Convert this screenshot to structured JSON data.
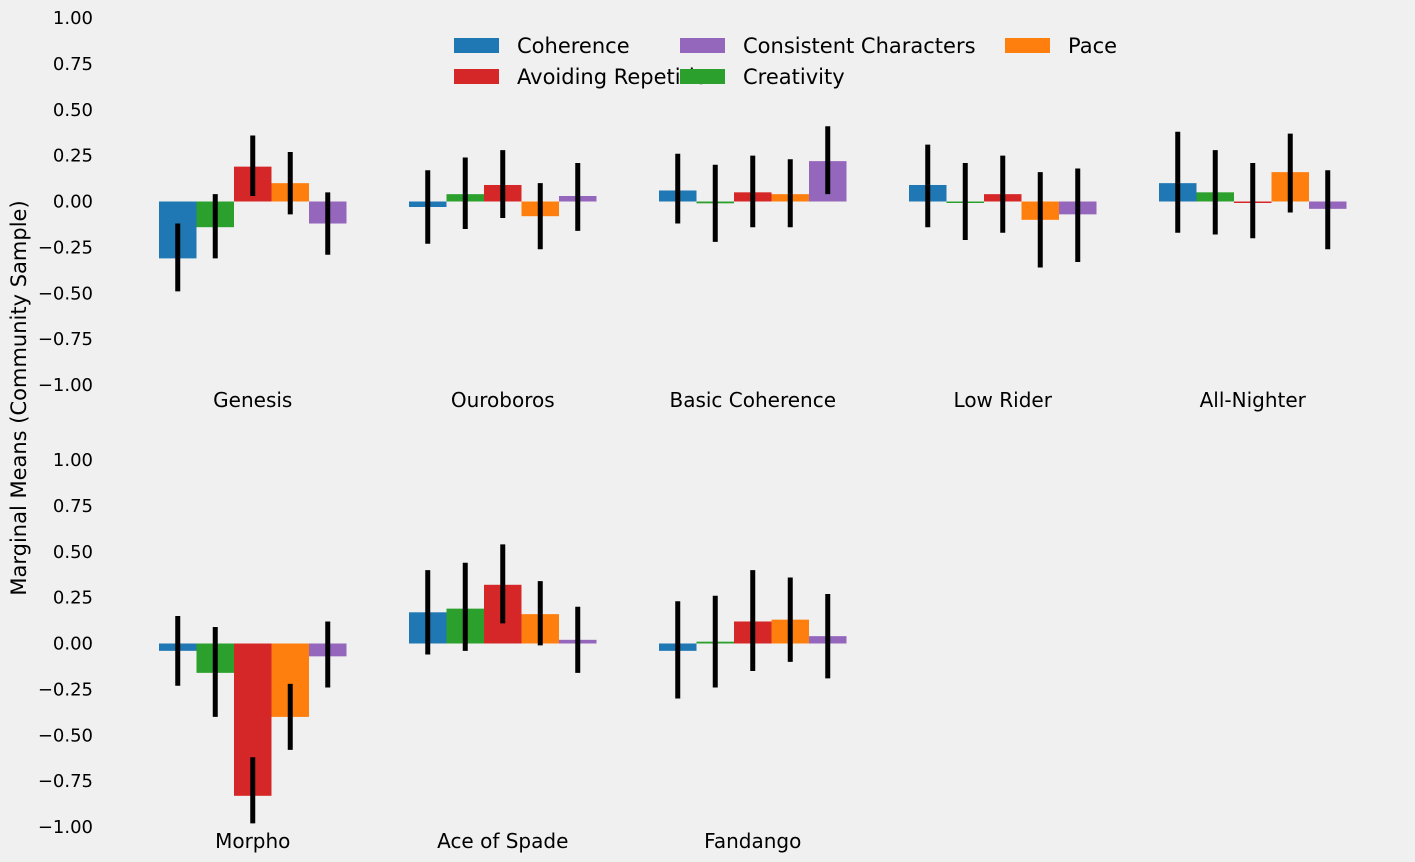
{
  "chart_data": {
    "type": "bar",
    "ylabel": "Marginal Means (Community Sample)",
    "ylim": [
      -1,
      1
    ],
    "yticks": [
      "1.00",
      "0.75",
      "0.50",
      "0.25",
      "0.00",
      "−0.25",
      "−0.50",
      "−0.75",
      "−1.00"
    ],
    "grid": false,
    "legend_position": "top",
    "series": [
      {
        "name": "Coherence",
        "color": "#1f77b4"
      },
      {
        "name": "Creativity",
        "color": "#2ca02c"
      },
      {
        "name": "Avoiding Repetition",
        "color": "#d62728"
      },
      {
        "name": "Pace",
        "color": "#ff7f0e"
      },
      {
        "name": "Consistent Characters",
        "color": "#9467bd"
      }
    ],
    "legend_order": [
      0,
      2,
      4,
      1,
      3
    ],
    "panels": [
      {
        "categories": [
          "Genesis",
          "Ouroboros",
          "Basic Coherence",
          "Low Rider",
          "All-Nighter"
        ],
        "values": [
          [
            -0.31,
            -0.14,
            0.19,
            0.1,
            -0.12
          ],
          [
            -0.03,
            0.04,
            0.09,
            -0.08,
            0.03
          ],
          [
            0.06,
            -0.01,
            0.05,
            0.04,
            0.22
          ],
          [
            0.09,
            0.0,
            0.04,
            -0.1,
            -0.07
          ],
          [
            0.1,
            0.05,
            0.0,
            0.16,
            -0.04
          ]
        ],
        "errors": [
          [
            [
              -0.49,
              -0.12
            ],
            [
              -0.31,
              0.04
            ],
            [
              0.03,
              0.36
            ],
            [
              -0.07,
              0.27
            ],
            [
              -0.29,
              0.05
            ]
          ],
          [
            [
              -0.23,
              0.17
            ],
            [
              -0.15,
              0.24
            ],
            [
              -0.09,
              0.28
            ],
            [
              -0.26,
              0.1
            ],
            [
              -0.16,
              0.21
            ]
          ],
          [
            [
              -0.12,
              0.26
            ],
            [
              -0.22,
              0.2
            ],
            [
              -0.14,
              0.25
            ],
            [
              -0.14,
              0.23
            ],
            [
              0.04,
              0.41
            ]
          ],
          [
            [
              -0.14,
              0.31
            ],
            [
              -0.21,
              0.21
            ],
            [
              -0.17,
              0.25
            ],
            [
              -0.36,
              0.16
            ],
            [
              -0.33,
              0.18
            ]
          ],
          [
            [
              -0.17,
              0.38
            ],
            [
              -0.18,
              0.28
            ],
            [
              -0.2,
              0.21
            ],
            [
              -0.06,
              0.37
            ],
            [
              -0.26,
              0.17
            ]
          ]
        ]
      },
      {
        "categories": [
          "Morpho",
          "Ace of Spade",
          "Fandango"
        ],
        "values": [
          [
            -0.04,
            -0.16,
            -0.83,
            -0.4,
            -0.07
          ],
          [
            0.17,
            0.19,
            0.32,
            0.16,
            0.02
          ],
          [
            -0.04,
            0.01,
            0.12,
            0.13,
            0.04
          ]
        ],
        "errors": [
          [
            [
              -0.23,
              0.15
            ],
            [
              -0.4,
              0.09
            ],
            [
              -0.98,
              -0.62
            ],
            [
              -0.58,
              -0.22
            ],
            [
              -0.24,
              0.12
            ]
          ],
          [
            [
              -0.06,
              0.4
            ],
            [
              -0.04,
              0.44
            ],
            [
              0.11,
              0.54
            ],
            [
              -0.01,
              0.34
            ],
            [
              -0.16,
              0.2
            ]
          ],
          [
            [
              -0.3,
              0.23
            ],
            [
              -0.24,
              0.26
            ],
            [
              -0.15,
              0.4
            ],
            [
              -0.1,
              0.36
            ],
            [
              -0.19,
              0.27
            ]
          ]
        ]
      }
    ]
  }
}
